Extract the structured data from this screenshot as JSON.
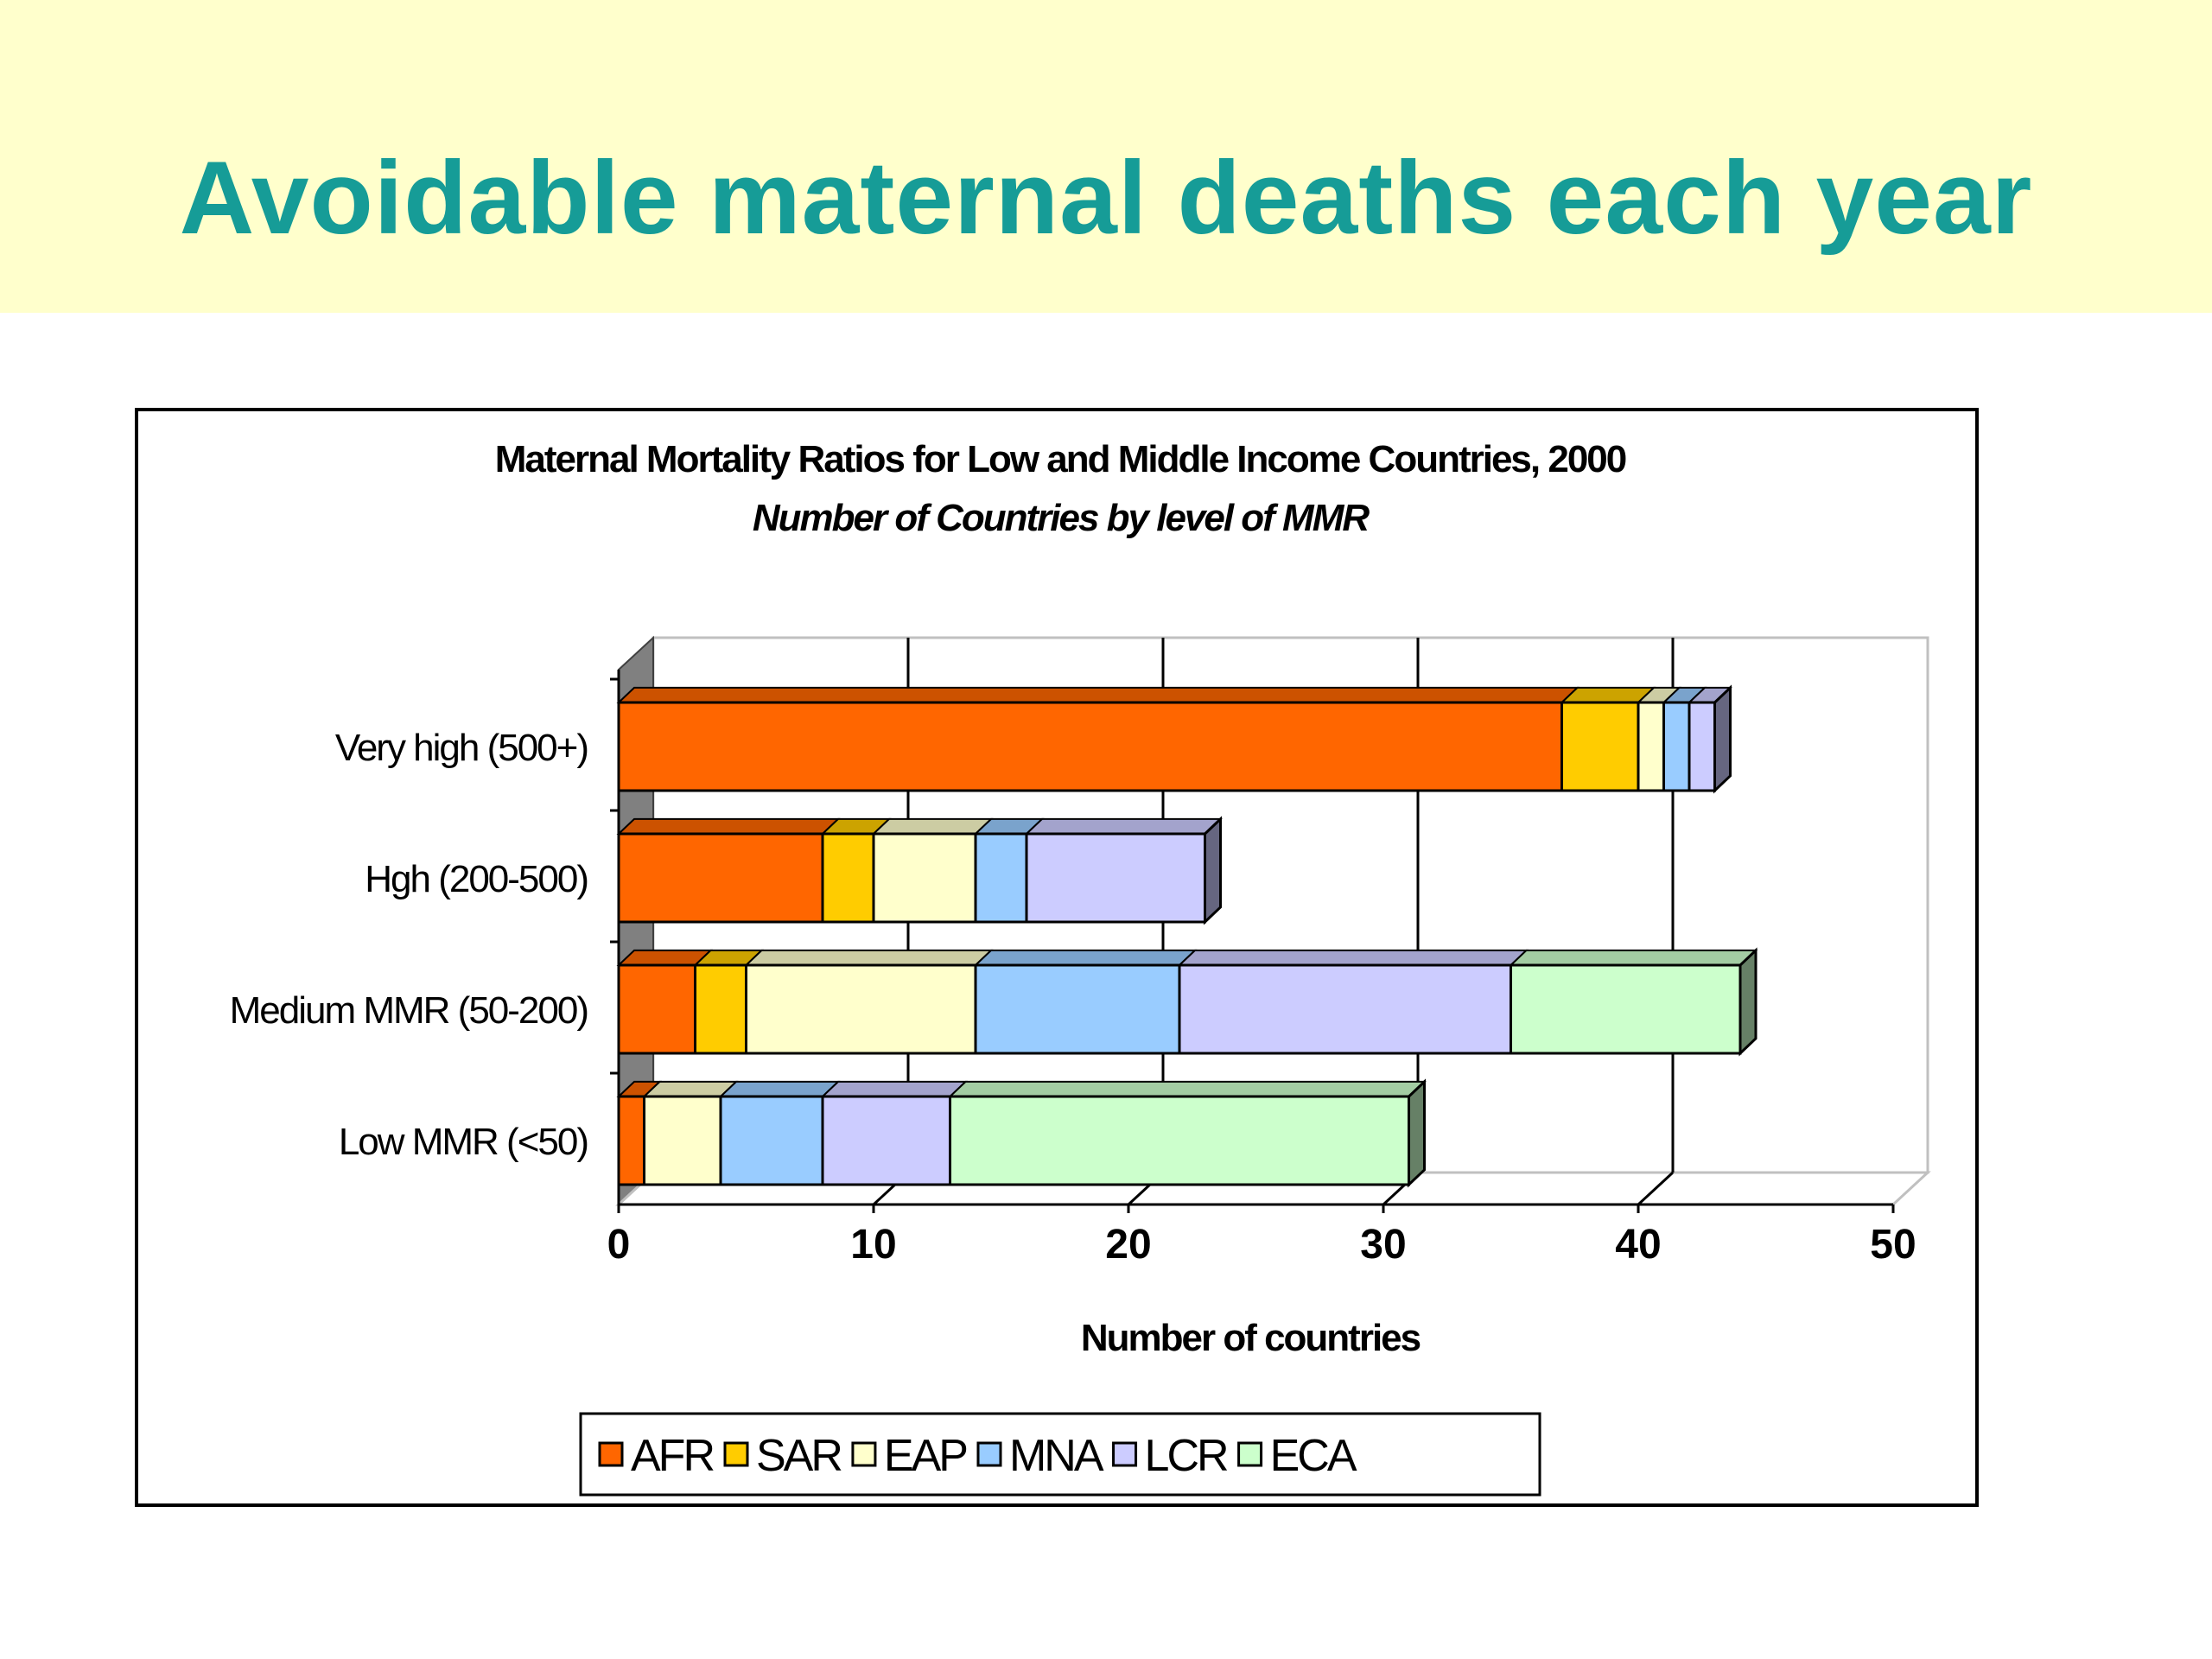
{
  "slide": {
    "title": "Avoidable  maternal deaths each year"
  },
  "chart_data": {
    "type": "bar",
    "orientation": "horizontal",
    "stacked": true,
    "three_d": true,
    "title": "Maternal Mortality Ratios for Low and Middle Income Countries, 2000",
    "subtitle": "Number of Countries by level of MMR",
    "xlabel": "Number of countries",
    "ylabel": "",
    "xlim": [
      0,
      50
    ],
    "xticks": [
      "0",
      "10",
      "20",
      "30",
      "40",
      "50"
    ],
    "grid": true,
    "legend_position": "bottom",
    "categories": [
      "Very high (500+)",
      "Hgh (200-500)",
      "Medium MMR (50-200)",
      "Low  MMR (<50)"
    ],
    "series": [
      {
        "name": "AFR",
        "color": "#ff6600",
        "values": [
          37,
          8,
          3,
          1
        ]
      },
      {
        "name": "SAR",
        "color": "#ffcc00",
        "values": [
          3,
          2,
          2,
          0
        ]
      },
      {
        "name": "EAP",
        "color": "#ffffcc",
        "values": [
          1,
          4,
          9,
          3
        ]
      },
      {
        "name": "MNA",
        "color": "#99ccff",
        "values": [
          1,
          2,
          8,
          4
        ]
      },
      {
        "name": "LCR",
        "color": "#ccccff",
        "values": [
          1,
          7,
          13,
          5
        ]
      },
      {
        "name": "ECA",
        "color": "#ccffcc",
        "values": [
          0,
          0,
          9,
          18
        ]
      }
    ]
  }
}
